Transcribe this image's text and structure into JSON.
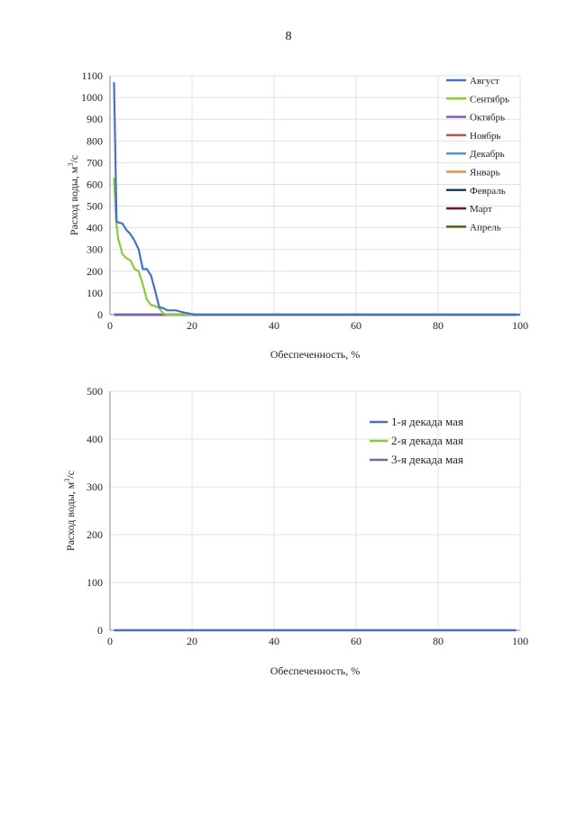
{
  "page": {
    "number": "8"
  },
  "chart_data": [
    {
      "type": "line",
      "xlabel": "Обеспеченность, %",
      "ylabel": "Расход воды, м³/с",
      "ylabel_main": "Расход воды, м",
      "ylabel_sup": "3",
      "ylabel_tail": "/с",
      "xlim": [
        0,
        100
      ],
      "ylim": [
        0,
        1100
      ],
      "xticks": [
        0,
        20,
        40,
        60,
        80,
        100
      ],
      "yticks": [
        0,
        100,
        200,
        300,
        400,
        500,
        600,
        700,
        800,
        900,
        1000,
        1100
      ],
      "grid": true,
      "legend": "right",
      "series": [
        {
          "name": "Август",
          "color": "#4472C4",
          "x": [
            1,
            1.6,
            2,
            3,
            4,
            5,
            6,
            7,
            8,
            9,
            10,
            11,
            12,
            13,
            14,
            15,
            16,
            18,
            19.5,
            20.5,
            100
          ],
          "y": [
            1070,
            430,
            425,
            420,
            390,
            370,
            340,
            300,
            210,
            210,
            180,
            110,
            35,
            30,
            20,
            20,
            20,
            10,
            5,
            0,
            0
          ]
        },
        {
          "name": "Сентябрь",
          "color": "#8DC63F",
          "x": [
            1,
            1.5,
            2,
            3,
            4,
            5,
            6,
            7,
            8,
            9,
            10,
            11,
            12,
            13,
            14,
            100
          ],
          "y": [
            630,
            430,
            350,
            280,
            260,
            250,
            210,
            200,
            140,
            70,
            45,
            40,
            30,
            5,
            0,
            0
          ]
        },
        {
          "name": "Октябрь",
          "color": "#7B5FB0",
          "x": [
            1,
            99
          ],
          "y": [
            0,
            0
          ]
        },
        {
          "name": "Ноябрь",
          "color": "#C0504D",
          "x": [
            1,
            99
          ],
          "y": [
            0,
            0
          ]
        },
        {
          "name": "Декабрь",
          "color": "#4A9BD1",
          "x": [
            1,
            99
          ],
          "y": [
            0,
            0
          ]
        },
        {
          "name": "Январь",
          "color": "#F28C38",
          "x": [
            1,
            99
          ],
          "y": [
            0,
            0
          ]
        },
        {
          "name": "Февраль",
          "color": "#1F3A68",
          "x": [
            1,
            99
          ],
          "y": [
            0,
            0
          ]
        },
        {
          "name": "Март",
          "color": "#5C1A2B",
          "x": [
            1,
            99
          ],
          "y": [
            0,
            0
          ]
        },
        {
          "name": "Апрель",
          "color": "#4F6228",
          "x": [
            1,
            99
          ],
          "y": [
            0,
            0
          ]
        }
      ]
    },
    {
      "type": "line",
      "xlabel": "Обеспеченность, %",
      "ylabel": "Расход воды, м³/с",
      "ylabel_main": "Расход воды, м",
      "ylabel_sup": "3",
      "ylabel_tail": "/с",
      "xlim": [
        0,
        100
      ],
      "ylim": [
        0,
        500
      ],
      "xticks": [
        0,
        20,
        40,
        60,
        80,
        100
      ],
      "yticks": [
        0,
        100,
        200,
        300,
        400,
        500
      ],
      "grid": true,
      "legend": "top-right",
      "series": [
        {
          "name": "1-я декада мая",
          "color": "#4472C4",
          "x": [
            1,
            99
          ],
          "y": [
            0,
            0
          ]
        },
        {
          "name": "2-я декада мая",
          "color": "#8DC63F",
          "x": [
            1,
            99
          ],
          "y": [
            0,
            0
          ]
        },
        {
          "name": "3-я декада мая",
          "color": "#7B5FB0",
          "x": [
            1,
            99
          ],
          "y": [
            0,
            0
          ]
        }
      ]
    }
  ]
}
